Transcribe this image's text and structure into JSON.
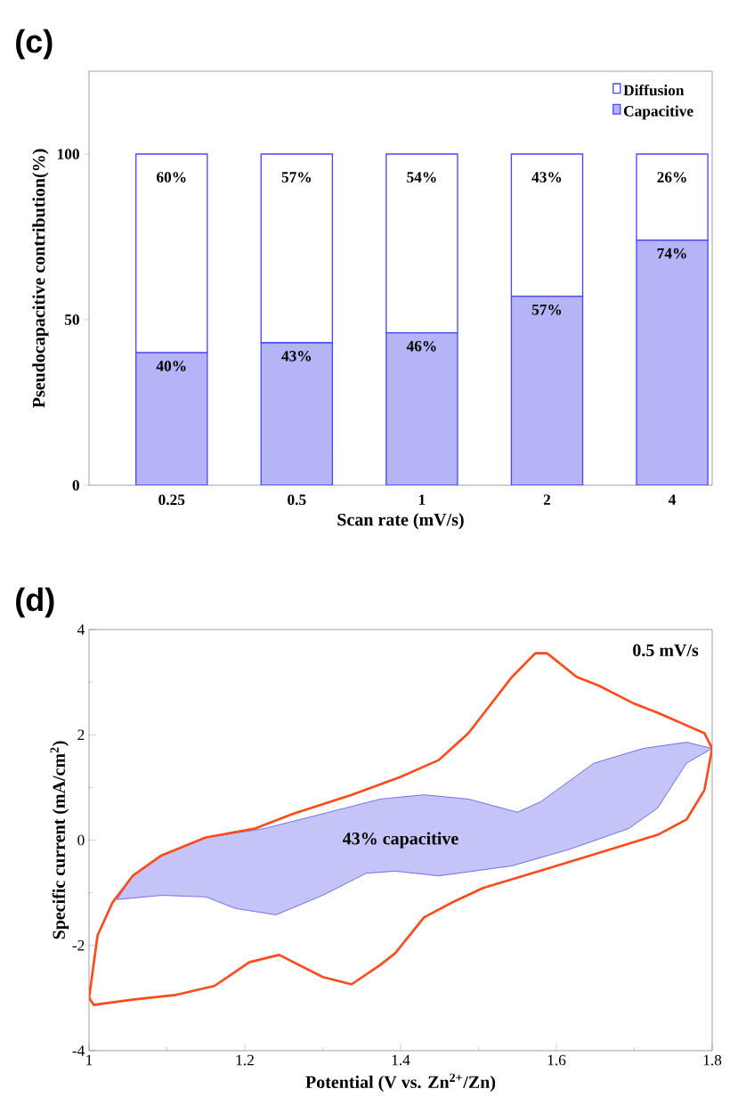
{
  "chart_data": [
    {
      "type": "bar",
      "title": "(c)",
      "xlabel": "Scan rate (mV/s)",
      "ylabel": "Pseudocapacitive contribution(%)",
      "categories": [
        "0.25",
        "0.5",
        "1",
        "2",
        "4"
      ],
      "stacked": true,
      "ylim": [
        0,
        125
      ],
      "yticks": [
        0,
        50,
        100
      ],
      "legend": "top right",
      "series": [
        {
          "name": "Capacitive",
          "color": "#b4b4f6",
          "values": [
            40,
            43,
            46,
            57,
            74
          ],
          "value_labels": [
            "40%",
            "43%",
            "46%",
            "57%",
            "74%"
          ]
        },
        {
          "name": "Diffusion",
          "color": "#ffffff",
          "values": [
            60,
            57,
            54,
            43,
            26
          ],
          "value_labels": [
            "60%",
            "57%",
            "54%",
            "43%",
            "26%"
          ]
        }
      ]
    },
    {
      "type": "line",
      "title": "(d)",
      "xlabel": "Potential (V vs. Zn$^{2+}$/Zn)",
      "ylabel": "Specific current (mA/cm$^{2}$)",
      "xlim": [
        1,
        1.8
      ],
      "ylim": [
        -4,
        4
      ],
      "xticks": [
        1,
        1.2,
        1.4,
        1.6,
        1.8
      ],
      "yticks": [
        -4,
        -2,
        0,
        2,
        4
      ],
      "annotations": [
        "0.5 mV/s",
        "43% capacitive"
      ],
      "series": [
        {
          "type": "area",
          "color": "#3a3ae6",
          "x": [
            1.036,
            1.056,
            1.093,
            1.15,
            1.225,
            1.3,
            1.374,
            1.43,
            1.487,
            1.55,
            1.58,
            1.648,
            1.711,
            1.767,
            1.8,
            1.767,
            1.73,
            1.693,
            1.618,
            1.543,
            1.449,
            1.393,
            1.356,
            1.3,
            1.24,
            1.188,
            1.15,
            1.093,
            1.036
          ],
          "values": [
            -1.13,
            -0.68,
            -0.29,
            0.05,
            0.22,
            0.5,
            0.78,
            0.86,
            0.78,
            0.53,
            0.73,
            1.46,
            1.74,
            1.86,
            1.74,
            1.46,
            0.61,
            0.22,
            -0.17,
            -0.49,
            -0.68,
            -0.59,
            -0.63,
            -1.05,
            -1.42,
            -1.3,
            -1.08,
            -1.05,
            -1.13
          ]
        },
        {
          "type": "line",
          "color": "#ff4a1c",
          "x": [
            1.0,
            1.011,
            1.03,
            1.056,
            1.093,
            1.15,
            1.213,
            1.262,
            1.337,
            1.4,
            1.449,
            1.487,
            1.543,
            1.573,
            1.588,
            1.626,
            1.655,
            1.7,
            1.73,
            1.79,
            1.8
          ],
          "values": [
            -3.0,
            -1.81,
            -1.19,
            -0.68,
            -0.29,
            0.05,
            0.22,
            0.5,
            0.86,
            1.2,
            1.52,
            2.03,
            3.1,
            3.55,
            3.55,
            3.1,
            2.93,
            2.59,
            2.42,
            2.03,
            1.74
          ]
        },
        {
          "type": "line",
          "color": "#ff4a1c",
          "x": [
            1.0,
            1.006,
            1.056,
            1.112,
            1.161,
            1.206,
            1.244,
            1.3,
            1.337,
            1.374,
            1.393,
            1.43,
            1.468,
            1.506,
            1.58,
            1.655,
            1.73,
            1.767,
            1.79,
            1.8
          ],
          "values": [
            -3.0,
            -3.13,
            -3.03,
            -2.94,
            -2.77,
            -2.32,
            -2.18,
            -2.6,
            -2.74,
            -2.37,
            -2.15,
            -1.47,
            -1.17,
            -0.91,
            -0.58,
            -0.24,
            0.1,
            0.39,
            0.95,
            1.74
          ]
        }
      ]
    }
  ]
}
